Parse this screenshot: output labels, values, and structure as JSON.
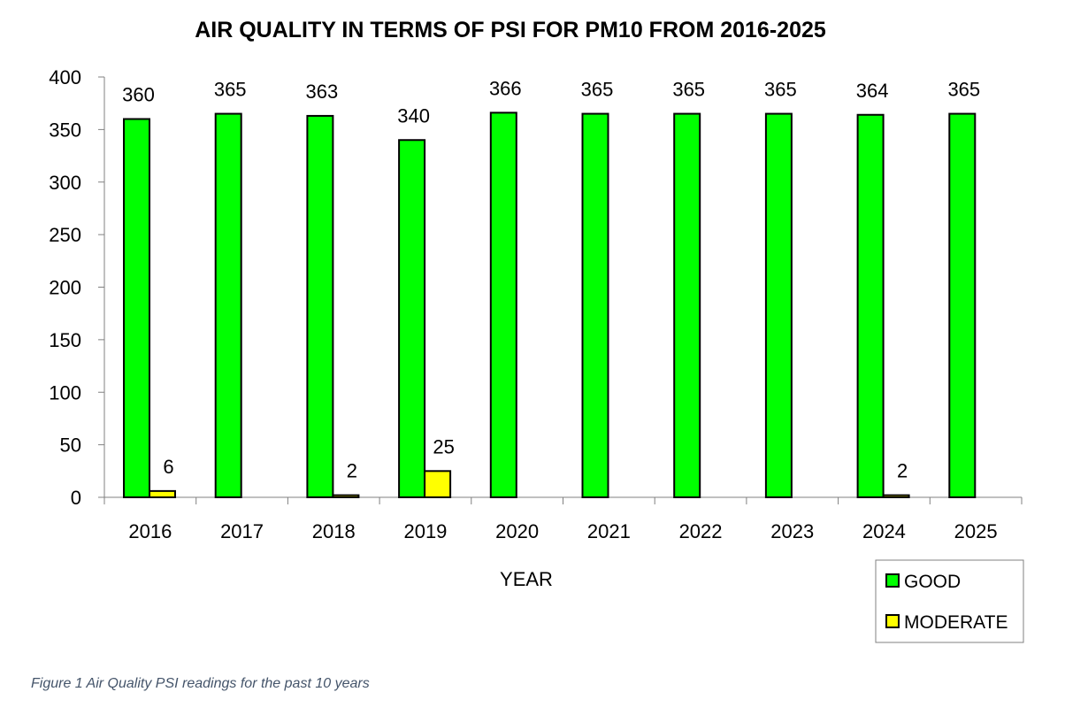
{
  "chart_data": {
    "type": "bar",
    "title": "AIR QUALITY IN TERMS OF PSI FOR PM10 FROM 2016-2025",
    "xlabel": "YEAR",
    "ylabel": "",
    "ylim": [
      0,
      400
    ],
    "yticks": [
      0,
      50,
      100,
      150,
      200,
      250,
      300,
      350,
      400
    ],
    "grid": false,
    "legend_position": "bottom-right",
    "categories": [
      "2016",
      "2017",
      "2018",
      "2019",
      "2020",
      "2021",
      "2022",
      "2023",
      "2024",
      "2025"
    ],
    "series": [
      {
        "name": "GOOD",
        "color": "#00ff00",
        "values": [
          360,
          365,
          363,
          340,
          366,
          365,
          365,
          365,
          364,
          365
        ]
      },
      {
        "name": "MODERATE",
        "color": "#ffff00",
        "values": [
          6,
          0,
          2,
          25,
          0,
          0,
          0,
          0,
          2,
          0
        ]
      }
    ]
  },
  "caption": "Figure 1 Air Quality PSI readings for the past 10 years"
}
